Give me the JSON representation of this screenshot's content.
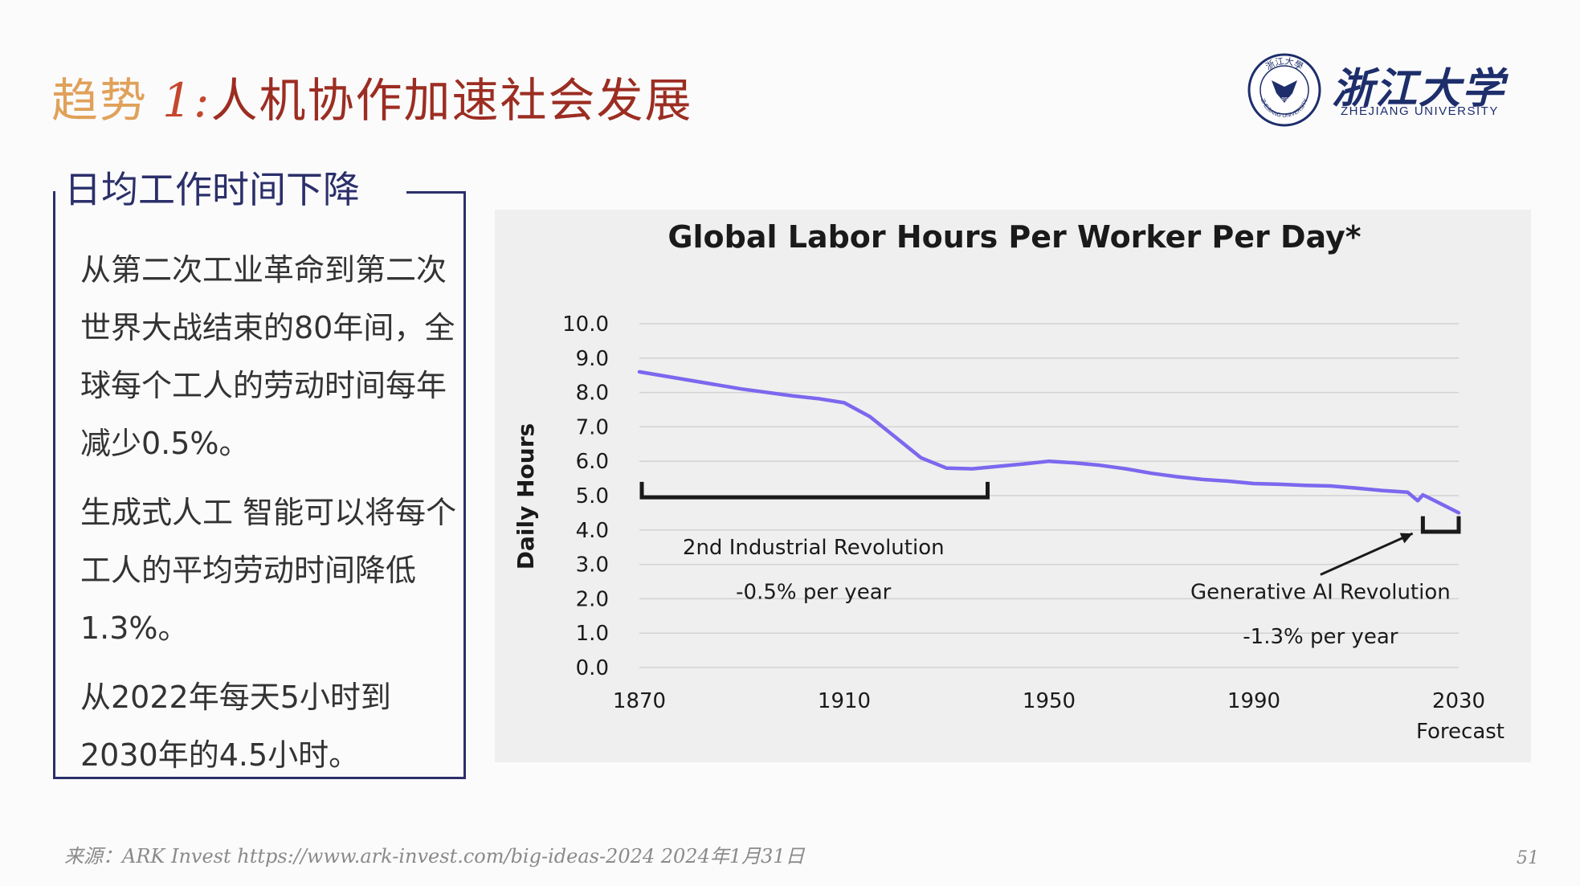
{
  "title": {
    "prefix": "趋势",
    "number": "1:",
    "main": "人机协作加速社会发展"
  },
  "logo": {
    "name_cn": "浙江大学",
    "name_en": "ZHEJIANG UNIVERSITY",
    "seal_text_top": "浙江大學",
    "seal_year": "1897",
    "seal_text_bottom": "ZHEJIANG UNIVERSITY"
  },
  "sidebar": {
    "heading": "日均工作时间下降",
    "paragraphs": [
      "从第二次工业革命到第二次世界大战结束的80年间，全球每个工人的劳动时间每年减少0.5%。",
      "生成式人工 智能可以将每个工人的平均劳动时间降低1.3%。",
      "从2022年每天5小时到2030年的4.5小时。"
    ]
  },
  "chart_data": {
    "type": "line",
    "title": "Global Labor Hours Per Worker Per Day*",
    "ylabel": "Daily Hours",
    "xlabel": "",
    "xlim": [
      1870,
      2030
    ],
    "ylim": [
      0,
      10
    ],
    "x_ticks": [
      1870,
      1910,
      1950,
      1990,
      2030
    ],
    "y_ticks": [
      "0.0",
      "1.0",
      "2.0",
      "3.0",
      "4.0",
      "5.0",
      "6.0",
      "7.0",
      "8.0",
      "9.0",
      "10.0"
    ],
    "x_tick_sublabel": "Forecast",
    "grid": true,
    "line_color": "#7b68ee",
    "series": [
      {
        "x": [
          1870,
          1880,
          1890,
          1900,
          1905,
          1910,
          1915,
          1920,
          1925,
          1930,
          1935,
          1940,
          1945,
          1950,
          1955,
          1960,
          1965,
          1970,
          1975,
          1980,
          1985,
          1990,
          1995,
          2000,
          2005,
          2010,
          2015,
          2020,
          2022,
          2023,
          2024,
          2030
        ],
        "y": [
          8.6,
          8.35,
          8.1,
          7.9,
          7.82,
          7.7,
          7.3,
          6.7,
          6.1,
          5.8,
          5.78,
          5.85,
          5.92,
          6.0,
          5.95,
          5.88,
          5.78,
          5.65,
          5.55,
          5.47,
          5.42,
          5.35,
          5.33,
          5.3,
          5.28,
          5.22,
          5.15,
          5.1,
          4.85,
          5.02,
          4.95,
          4.5
        ]
      }
    ],
    "annotations": [
      {
        "label": "2nd Industrial Revolution",
        "sublabel": "-0.5% per year",
        "x_start": 1870,
        "x_end": 1938,
        "y_level": 5.0
      },
      {
        "label": "Generative AI Revolution",
        "sublabel": "-1.3% per year",
        "x_start": 2023,
        "x_end": 2030,
        "y_level": 4.0
      }
    ]
  },
  "footer": {
    "source": "来源：ARK Invest https://www.ark-invest.com/big-ideas-2024  2024年1月31日",
    "page_number": "51"
  }
}
